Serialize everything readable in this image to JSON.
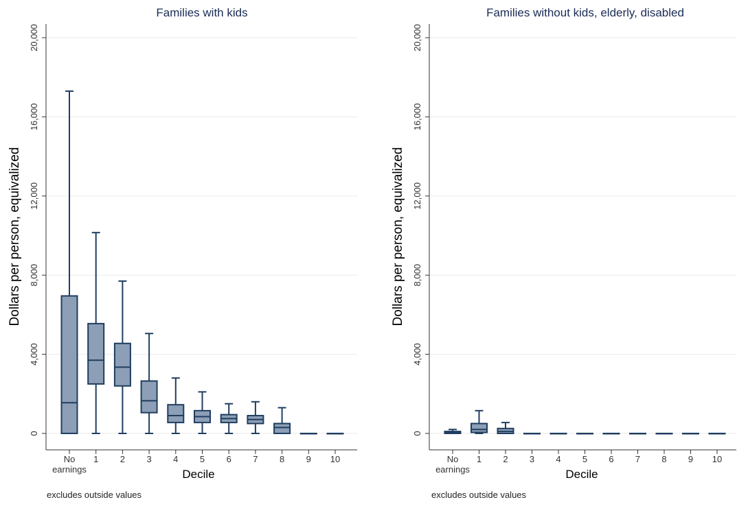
{
  "chart_data": [
    {
      "type": "box",
      "title": "Families with kids",
      "xlabel": "Decile",
      "ylabel": "Dollars per person, equivalized",
      "note": "excludes outside values",
      "ylim": [
        0,
        20000
      ],
      "yticks": [
        0,
        4000,
        8000,
        12000,
        16000,
        20000
      ],
      "ytick_labels": [
        "0",
        "4,000",
        "8,000",
        "12,000",
        "16,000",
        "20,000"
      ],
      "categories": [
        "No earnings",
        "1",
        "2",
        "3",
        "4",
        "5",
        "6",
        "7",
        "8",
        "9",
        "10"
      ],
      "category_labels": [
        [
          "No",
          "earnings"
        ],
        [
          "1"
        ],
        [
          "2"
        ],
        [
          "3"
        ],
        [
          "4"
        ],
        [
          "5"
        ],
        [
          "6"
        ],
        [
          "7"
        ],
        [
          "8"
        ],
        [
          "9"
        ],
        [
          "10"
        ]
      ],
      "grid": true,
      "colors": {
        "box_fill": "#8c9fb6",
        "box_stroke": "#1f3d60"
      },
      "boxes": [
        {
          "min": 0,
          "q1": 0,
          "median": 1550,
          "q3": 6950,
          "max": 17300
        },
        {
          "min": 0,
          "q1": 2500,
          "median": 3700,
          "q3": 5550,
          "max": 10150
        },
        {
          "min": 0,
          "q1": 2400,
          "median": 3350,
          "q3": 4550,
          "max": 7700
        },
        {
          "min": 0,
          "q1": 1050,
          "median": 1650,
          "q3": 2650,
          "max": 5050
        },
        {
          "min": 0,
          "q1": 550,
          "median": 900,
          "q3": 1450,
          "max": 2800
        },
        {
          "min": 0,
          "q1": 550,
          "median": 850,
          "q3": 1150,
          "max": 2100
        },
        {
          "min": 0,
          "q1": 550,
          "median": 750,
          "q3": 950,
          "max": 1500
        },
        {
          "min": 0,
          "q1": 500,
          "median": 700,
          "q3": 900,
          "max": 1600
        },
        {
          "min": 0,
          "q1": 0,
          "median": 300,
          "q3": 500,
          "max": 1300
        },
        {
          "min": 0,
          "q1": 0,
          "median": 0,
          "q3": 0,
          "max": 0
        },
        {
          "min": 0,
          "q1": 0,
          "median": 0,
          "q3": 0,
          "max": 0
        }
      ]
    },
    {
      "type": "box",
      "title": "Families without kids, elderly, disabled",
      "xlabel": "Decile",
      "ylabel": "Dollars per person, equivalized",
      "note": "excludes outside values",
      "ylim": [
        0,
        20000
      ],
      "yticks": [
        0,
        4000,
        8000,
        12000,
        16000,
        20000
      ],
      "ytick_labels": [
        "0",
        "4,000",
        "8,000",
        "12,000",
        "16,000",
        "20,000"
      ],
      "categories": [
        "No earnings",
        "1",
        "2",
        "3",
        "4",
        "5",
        "6",
        "7",
        "8",
        "9",
        "10"
      ],
      "category_labels": [
        [
          "No",
          "earnings"
        ],
        [
          "1"
        ],
        [
          "2"
        ],
        [
          "3"
        ],
        [
          "4"
        ],
        [
          "5"
        ],
        [
          "6"
        ],
        [
          "7"
        ],
        [
          "8"
        ],
        [
          "9"
        ],
        [
          "10"
        ]
      ],
      "grid": true,
      "colors": {
        "box_fill": "#8c9fb6",
        "box_stroke": "#1f3d60"
      },
      "boxes": [
        {
          "min": 0,
          "q1": 0,
          "median": 50,
          "q3": 100,
          "max": 200
        },
        {
          "min": 0,
          "q1": 50,
          "median": 200,
          "q3": 500,
          "max": 1150
        },
        {
          "min": 0,
          "q1": 0,
          "median": 100,
          "q3": 250,
          "max": 550
        },
        {
          "min": 0,
          "q1": 0,
          "median": 0,
          "q3": 0,
          "max": 0
        },
        {
          "min": 0,
          "q1": 0,
          "median": 0,
          "q3": 0,
          "max": 0
        },
        {
          "min": 0,
          "q1": 0,
          "median": 0,
          "q3": 0,
          "max": 0
        },
        {
          "min": 0,
          "q1": 0,
          "median": 0,
          "q3": 0,
          "max": 0
        },
        {
          "min": 0,
          "q1": 0,
          "median": 0,
          "q3": 0,
          "max": 0
        },
        {
          "min": 0,
          "q1": 0,
          "median": 0,
          "q3": 0,
          "max": 0
        },
        {
          "min": 0,
          "q1": 0,
          "median": 0,
          "q3": 0,
          "max": 0
        },
        {
          "min": 0,
          "q1": 0,
          "median": 0,
          "q3": 0,
          "max": 0
        }
      ]
    }
  ]
}
